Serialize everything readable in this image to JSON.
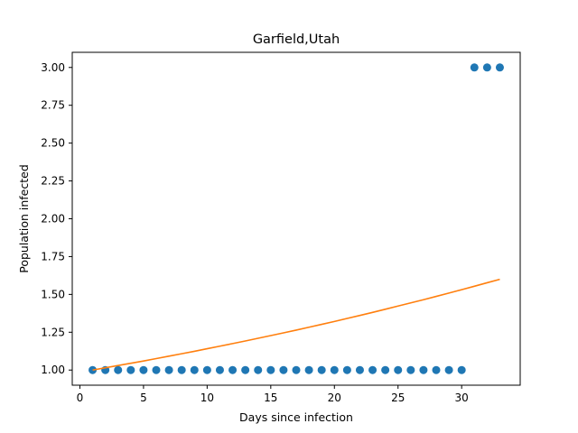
{
  "chart_data": {
    "type": "scatter",
    "title": "Garfield,Utah",
    "xlabel": "Days since infection",
    "ylabel": "Population infected",
    "xlim": [
      -0.6,
      34.6
    ],
    "ylim": [
      0.9,
      3.1
    ],
    "xticks": [
      0,
      5,
      10,
      15,
      20,
      25,
      30
    ],
    "yticks": [
      1.0,
      1.25,
      1.5,
      1.75,
      2.0,
      2.25,
      2.5,
      2.75,
      3.0
    ],
    "xtick_labels": [
      "0",
      "5",
      "10",
      "15",
      "20",
      "25",
      "30"
    ],
    "ytick_labels": [
      "1.00",
      "1.25",
      "1.50",
      "1.75",
      "2.00",
      "2.25",
      "2.50",
      "2.75",
      "3.00"
    ],
    "grid": false,
    "series": [
      {
        "kind": "scatter",
        "color": "#1f77b4",
        "x": [
          1,
          2,
          3,
          4,
          5,
          6,
          7,
          8,
          9,
          10,
          11,
          12,
          13,
          14,
          15,
          16,
          17,
          18,
          19,
          20,
          21,
          22,
          23,
          24,
          25,
          26,
          27,
          28,
          29,
          30,
          31,
          32,
          33
        ],
        "y": [
          1,
          1,
          1,
          1,
          1,
          1,
          1,
          1,
          1,
          1,
          1,
          1,
          1,
          1,
          1,
          1,
          1,
          1,
          1,
          1,
          1,
          1,
          1,
          1,
          1,
          1,
          1,
          1,
          1,
          1,
          3,
          3,
          3
        ]
      },
      {
        "kind": "line",
        "color": "#ff7f0e",
        "x": [
          1,
          2,
          3,
          4,
          5,
          6,
          7,
          8,
          9,
          10,
          11,
          12,
          13,
          14,
          15,
          16,
          17,
          18,
          19,
          20,
          21,
          22,
          23,
          24,
          25,
          26,
          27,
          28,
          29,
          30,
          31,
          32,
          33
        ],
        "y": [
          1.0,
          1.015,
          1.03,
          1.045,
          1.06,
          1.076,
          1.092,
          1.108,
          1.124,
          1.141,
          1.158,
          1.175,
          1.192,
          1.21,
          1.228,
          1.246,
          1.264,
          1.283,
          1.302,
          1.321,
          1.341,
          1.361,
          1.381,
          1.402,
          1.423,
          1.444,
          1.465,
          1.487,
          1.509,
          1.531,
          1.554,
          1.577,
          1.6
        ]
      }
    ]
  }
}
